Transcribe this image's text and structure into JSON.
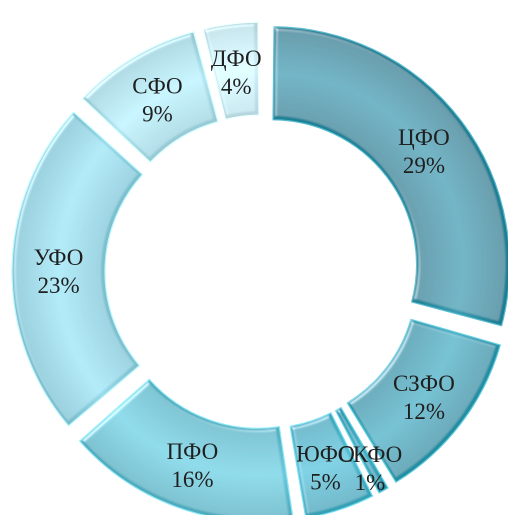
{
  "chart_data": {
    "type": "pie",
    "title": "",
    "slices": [
      {
        "label": "ЦФО",
        "value": 29,
        "value_label": "29%",
        "color": "#2f92a6"
      },
      {
        "label": "СЗФО",
        "value": 12,
        "value_label": "12%",
        "color": "#37a2b6"
      },
      {
        "label": "СКФО",
        "value": 1,
        "value_label": "1%",
        "color": "#3aa7bc"
      },
      {
        "label": "ЮФО",
        "value": 5,
        "value_label": "5%",
        "color": "#4ab4c9"
      },
      {
        "label": "ПФО",
        "value": 16,
        "value_label": "16%",
        "color": "#62bfd0"
      },
      {
        "label": "УФО",
        "value": 23,
        "value_label": "23%",
        "color": "#8fd0df"
      },
      {
        "label": "СФО",
        "value": 9,
        "value_label": "9%",
        "color": "#a9dbe6"
      },
      {
        "label": "ДФО",
        "value": 4,
        "value_label": "4%",
        "color": "#c6e7ef"
      }
    ],
    "style": "exploded doughnut"
  }
}
